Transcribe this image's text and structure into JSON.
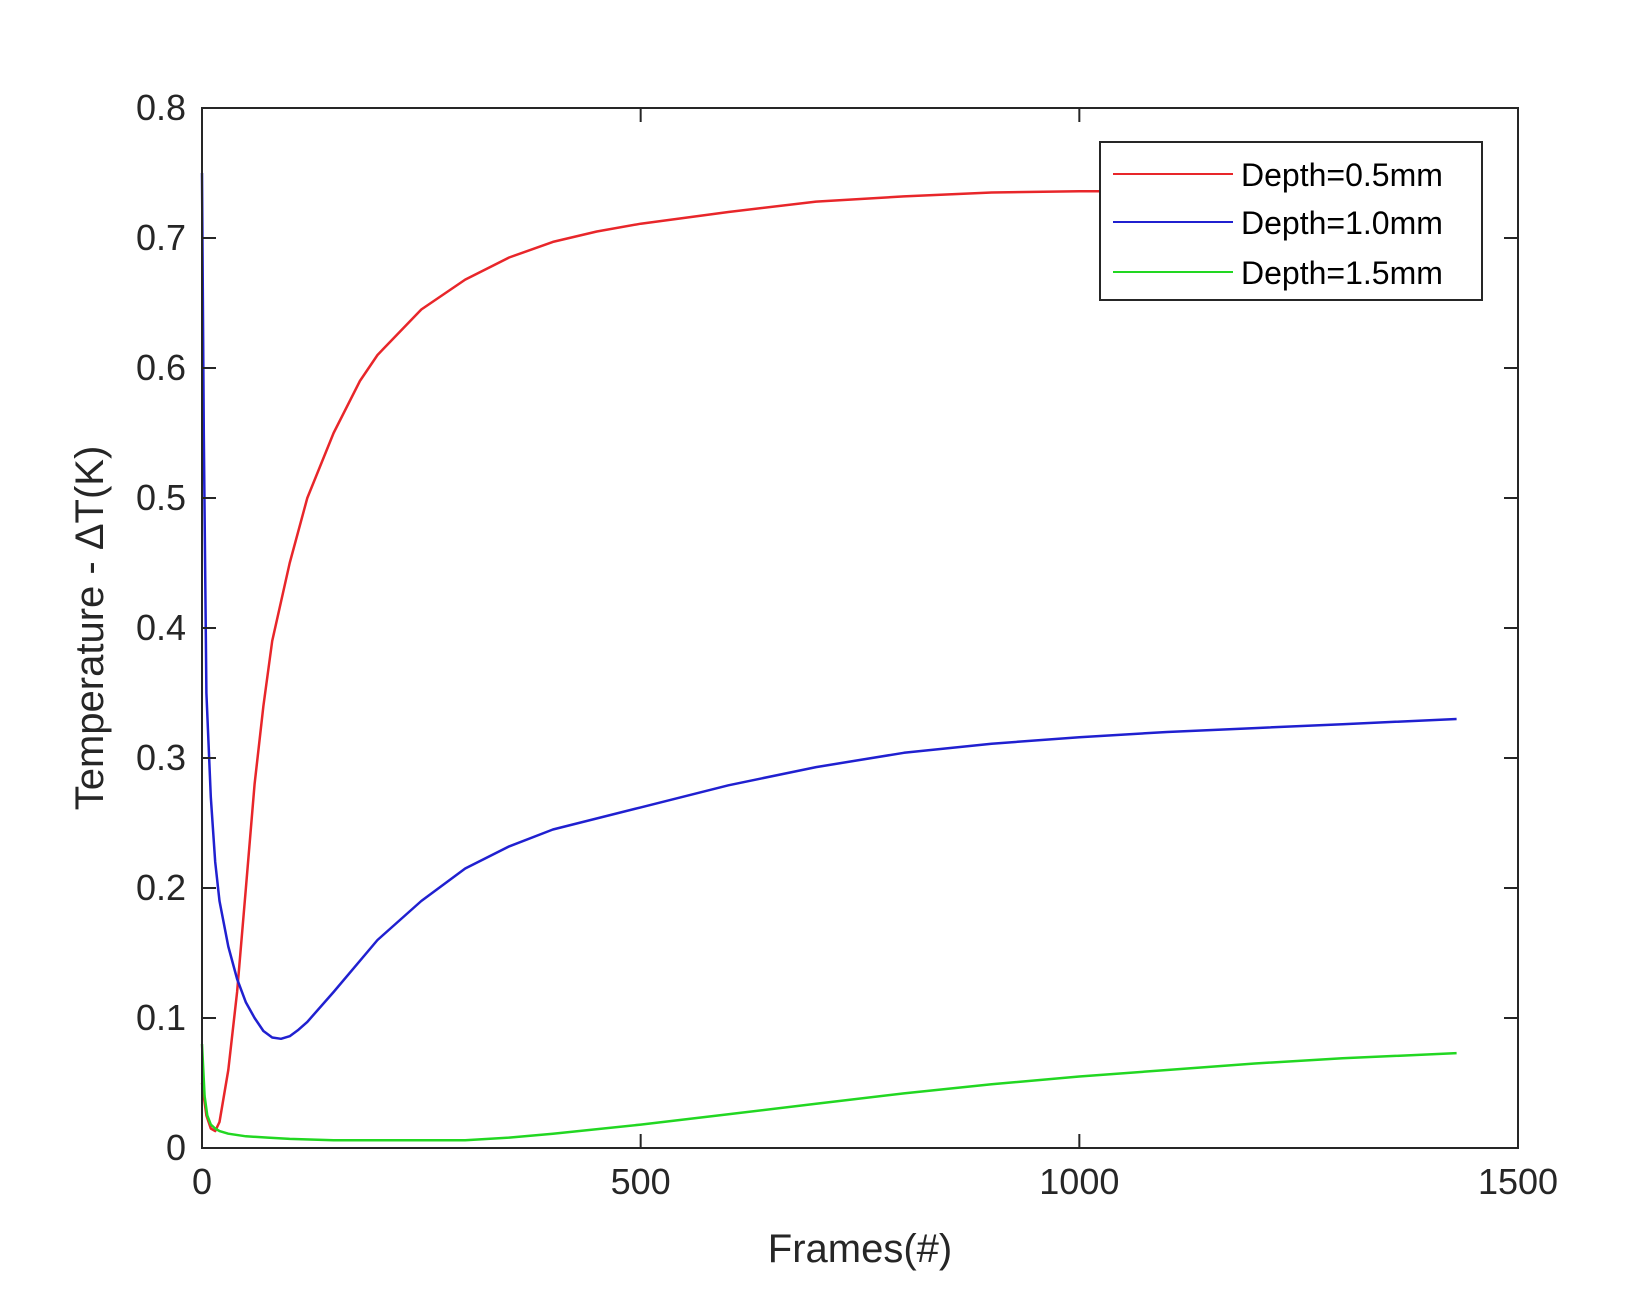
{
  "chart_data": {
    "type": "line",
    "title": "",
    "xlabel": "Frames(#)",
    "ylabel": "Temperature - ΔT(K)",
    "xlim": [
      0,
      1500
    ],
    "ylim": [
      0,
      0.8
    ],
    "xticks": [
      0,
      500,
      1000,
      1500
    ],
    "yticks": [
      0,
      0.1,
      0.2,
      0.3,
      0.4,
      0.5,
      0.6,
      0.7,
      0.8
    ],
    "xtick_labels": [
      "0",
      "500",
      "1000",
      "1500"
    ],
    "ytick_labels": [
      "0",
      "0.1",
      "0.2",
      "0.3",
      "0.4",
      "0.5",
      "0.6",
      "0.7",
      "0.8"
    ],
    "grid": false,
    "legend_position": "top-right",
    "series": [
      {
        "name": "Depth=0.5mm",
        "color": "#e8262a",
        "x": [
          0,
          5,
          10,
          15,
          20,
          30,
          40,
          50,
          60,
          70,
          80,
          100,
          120,
          150,
          180,
          200,
          250,
          300,
          350,
          400,
          450,
          500,
          600,
          700,
          800,
          900,
          1000,
          1050
        ],
        "y": [
          0.05,
          0.025,
          0.015,
          0.013,
          0.02,
          0.06,
          0.12,
          0.2,
          0.28,
          0.34,
          0.39,
          0.45,
          0.5,
          0.55,
          0.59,
          0.61,
          0.645,
          0.668,
          0.685,
          0.697,
          0.705,
          0.711,
          0.72,
          0.728,
          0.732,
          0.735,
          0.736,
          0.736
        ]
      },
      {
        "name": "Depth=1.0mm",
        "color": "#2020d0",
        "x": [
          0,
          2,
          5,
          10,
          15,
          20,
          30,
          40,
          50,
          60,
          70,
          80,
          90,
          100,
          110,
          120,
          150,
          200,
          250,
          300,
          350,
          400,
          500,
          600,
          700,
          800,
          900,
          1000,
          1100,
          1200,
          1300,
          1430
        ],
        "y": [
          0.75,
          0.55,
          0.35,
          0.27,
          0.22,
          0.19,
          0.155,
          0.13,
          0.112,
          0.1,
          0.09,
          0.085,
          0.084,
          0.086,
          0.091,
          0.097,
          0.12,
          0.16,
          0.19,
          0.215,
          0.232,
          0.245,
          0.262,
          0.279,
          0.293,
          0.304,
          0.311,
          0.316,
          0.32,
          0.323,
          0.326,
          0.33
        ]
      },
      {
        "name": "Depth=1.5mm",
        "color": "#22d722",
        "x": [
          0,
          3,
          6,
          10,
          15,
          20,
          30,
          50,
          75,
          100,
          150,
          200,
          250,
          300,
          350,
          400,
          500,
          600,
          700,
          800,
          900,
          1000,
          1100,
          1200,
          1300,
          1430
        ],
        "y": [
          0.08,
          0.04,
          0.025,
          0.018,
          0.015,
          0.013,
          0.011,
          0.009,
          0.008,
          0.007,
          0.006,
          0.006,
          0.006,
          0.006,
          0.008,
          0.011,
          0.018,
          0.026,
          0.034,
          0.042,
          0.049,
          0.055,
          0.06,
          0.065,
          0.069,
          0.073
        ]
      }
    ]
  }
}
